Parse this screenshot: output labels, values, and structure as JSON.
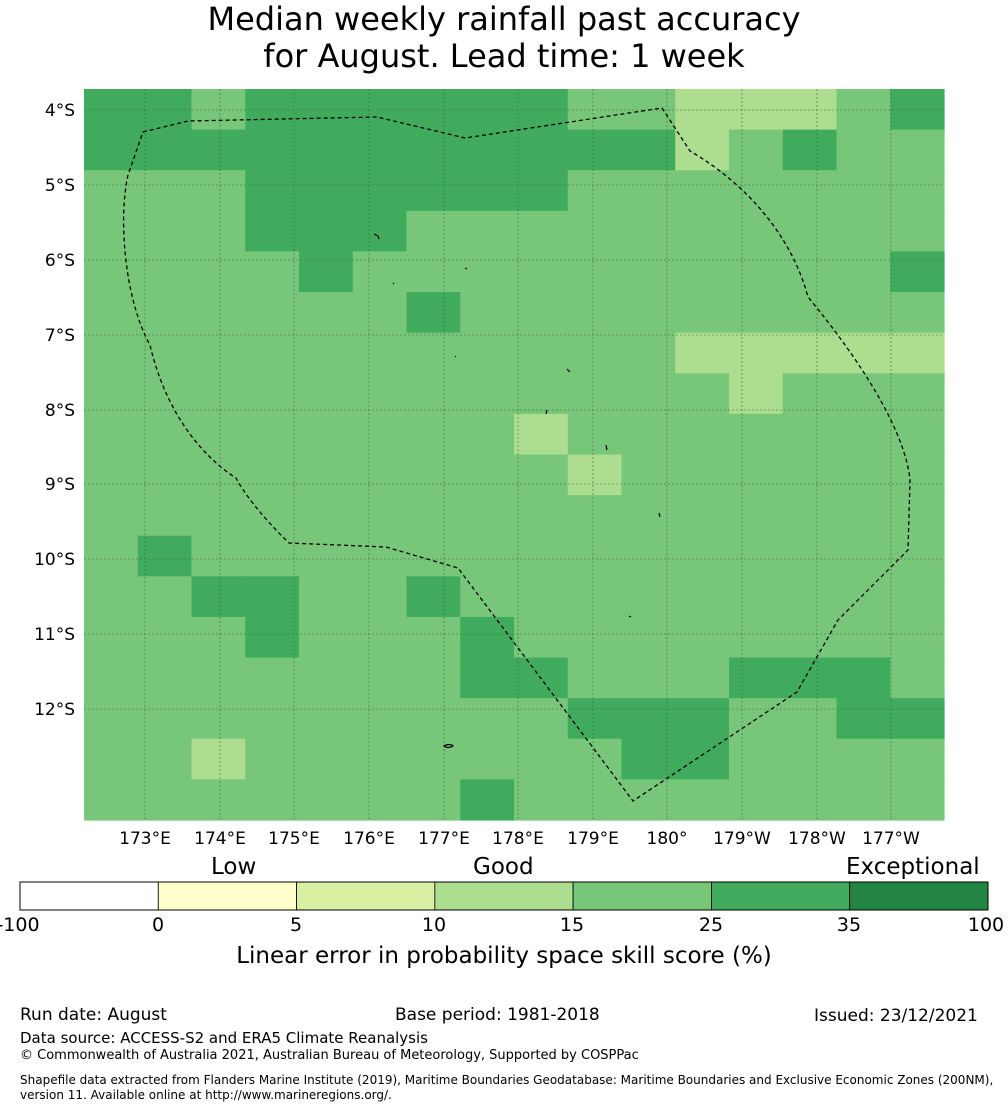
{
  "title": {
    "line1": "Median weekly rainfall past accuracy",
    "line2": "for August. Lead time: 1 week"
  },
  "map": {
    "lon_labels": [
      "173°E",
      "174°E",
      "175°E",
      "176°E",
      "177°E",
      "178°E",
      "179°E",
      "180°",
      "179°W",
      "178°W",
      "177°W"
    ],
    "lat_labels": [
      "4°S",
      "5°S",
      "6°S",
      "7°S",
      "8°S",
      "9°S",
      "10°S",
      "11°S",
      "12°S"
    ],
    "colors": {
      "c15_25": "#78c679",
      "c25_35": "#41ab5d",
      "c10_15": "#addd8e"
    },
    "grid_rows": [
      "DDMDDDDDDMMLLLMD",
      "DDDDDDDDDDDLMDMM",
      "MMMDDDDDDMMMMMMM",
      "MMMDDDMMMMMMMMMM",
      "MMMMDMMMMMMMMMMD",
      "MMMMMMDMMMMMMMMM",
      "MMMMMMMMMMMLLLLL",
      "MMMMMMMMMMMMLMMM",
      "MMMMMMMMLMMMMMMM",
      "MMMMMMMMMLMMMMMM",
      "MMMMMMMMMMMMMMMM",
      "MDMMMMMMMMMMMMMM",
      "MMDDMMDMMMMMMMMM",
      "MMMDMMMDMMMMMMMM",
      "MMMMMMMDDMMMDDDM",
      "MMMMMMMMMDDDMMDD",
      "MMLMMMMMMMDDMMMM",
      "MMMMMMMDMMMMMMMM"
    ]
  },
  "colorbar": {
    "categories": [
      "Low",
      "Good",
      "Exceptional"
    ],
    "ticks": [
      "-100",
      "0",
      "5",
      "10",
      "15",
      "25",
      "35",
      "100"
    ],
    "colors": [
      "#ffffff",
      "#ffffcc",
      "#d9f0a3",
      "#addd8e",
      "#78c679",
      "#41ab5d",
      "#238443"
    ],
    "label": "Linear error in probability space skill score (%)"
  },
  "footer": {
    "run_date": "Run date: August",
    "base_period": "Base period: 1981-2018",
    "issued": "Issued: 23/12/2021",
    "data_source": "Data source: ACCESS-S2 and ERA5 Climate Reanalysis",
    "copyright": "© Commonwealth of Australia 2021, Australian Bureau of Meteorology, Supported by COSPPac",
    "shapefile": "Shapefile data extracted from Flanders Marine Institute (2019), Maritime Boundaries Geodatabase: Maritime Boundaries and Exclusive Economic Zones (200NM), version 11. Available online at http://www.marineregions.org/."
  }
}
